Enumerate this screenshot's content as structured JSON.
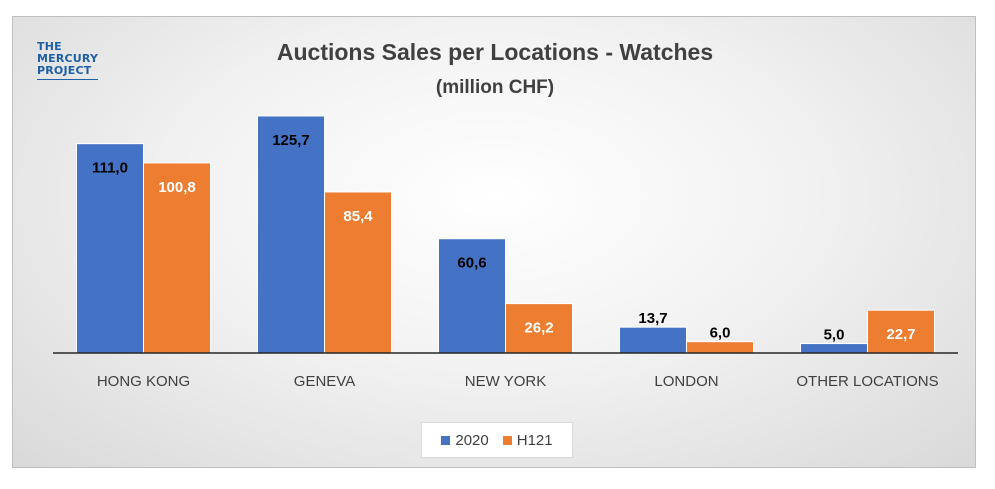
{
  "logo": {
    "line1": "THE",
    "line2": "MERCURY",
    "line3": "PROJECT"
  },
  "chart_data": {
    "type": "bar",
    "title": "Auctions Sales per Locations - Watches",
    "subtitle": "(million CHF)",
    "categories": [
      "HONG KONG",
      "GENEVA",
      "NEW YORK",
      "LONDON",
      "OTHER LOCATIONS"
    ],
    "series": [
      {
        "name": "2020",
        "values": [
          111.0,
          125.7,
          60.6,
          13.7,
          5.0
        ],
        "labels": [
          "111,0",
          "125,7",
          "60,6",
          "13,7",
          "5,0"
        ],
        "color": "#4472c4"
      },
      {
        "name": "H121",
        "values": [
          100.8,
          85.4,
          26.2,
          6.0,
          22.7
        ],
        "labels": [
          "100,8",
          "85,4",
          "26,2",
          "6,0",
          "22,7"
        ],
        "color": "#ed7d31"
      }
    ],
    "ylim": [
      0,
      140
    ],
    "legend": "bottom",
    "grid": false
  }
}
